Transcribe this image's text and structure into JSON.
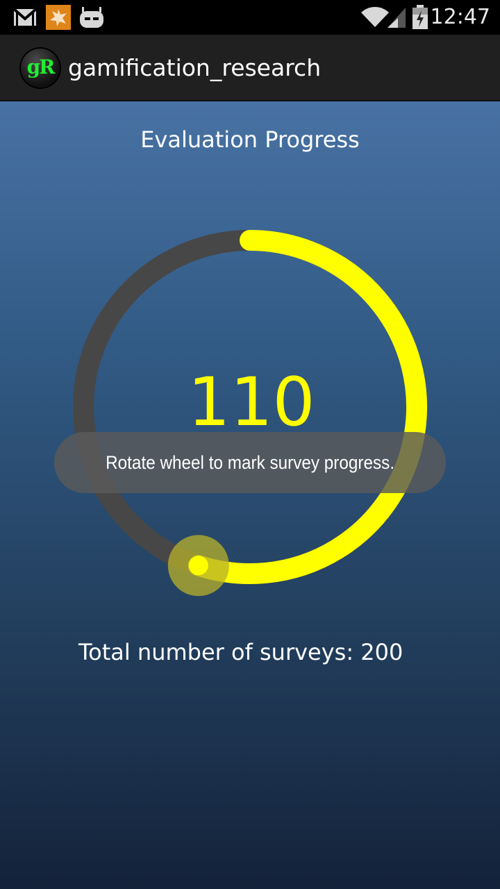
{
  "status_bar": {
    "time": "12:47",
    "icons": [
      "gmail-icon",
      "notification-icon",
      "cyanogenmod-icon",
      "wifi-icon",
      "signal-icon",
      "battery-icon"
    ]
  },
  "action_bar": {
    "logo_text": "gR",
    "title": "gamification_research"
  },
  "main": {
    "title": "Evaluation Progress",
    "progress_value": "110",
    "progress_current": 110,
    "progress_total": 200,
    "total_label": "Total number of surveys: 200"
  },
  "toast": {
    "message": "Rotate wheel to mark survey progress."
  },
  "colors": {
    "track": "#474747",
    "progress": "#ffff00",
    "handle": "#b8b02a"
  }
}
